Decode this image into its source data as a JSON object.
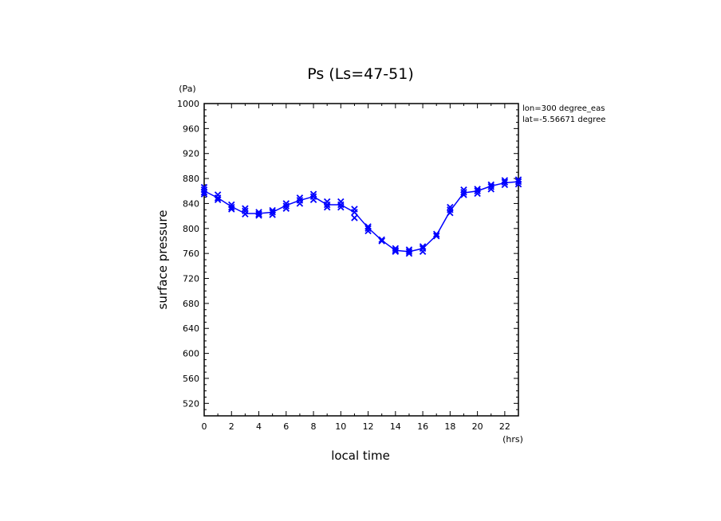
{
  "chart_data": {
    "type": "line",
    "title": "Ps (Ls=47-51)",
    "xlabel": "local time",
    "ylabel": "surface pressure",
    "x_unit": "(hrs)",
    "y_unit": "(Pa)",
    "xlim": [
      0,
      23
    ],
    "ylim": [
      500,
      1000
    ],
    "xticks": [
      0,
      2,
      4,
      6,
      8,
      10,
      12,
      14,
      16,
      18,
      20,
      22
    ],
    "yticks": [
      520,
      560,
      600,
      640,
      680,
      720,
      760,
      800,
      840,
      880,
      920,
      960,
      1000
    ],
    "annotations": [
      "lon=300 degree_eas",
      "lat=-5.56671 degree"
    ],
    "color": "#0000ff",
    "series": [
      {
        "x": [
          0,
          1,
          2,
          3,
          4,
          5,
          6,
          7,
          8,
          9,
          10,
          11,
          12,
          13,
          14,
          15,
          16,
          17,
          18,
          19,
          20,
          21,
          22,
          23
        ],
        "values": [
          860,
          849,
          835,
          824,
          824,
          826,
          837,
          845,
          851,
          838,
          838,
          826,
          801,
          781,
          765,
          763,
          768,
          789,
          828,
          857,
          860,
          868,
          873,
          875
        ]
      }
    ],
    "markers": {
      "style": "x",
      "points": [
        [
          0,
          866
        ],
        [
          0,
          862
        ],
        [
          0,
          858
        ],
        [
          0,
          855
        ],
        [
          1,
          854
        ],
        [
          1,
          849
        ],
        [
          1,
          846
        ],
        [
          2,
          838
        ],
        [
          2,
          834
        ],
        [
          2,
          831
        ],
        [
          3,
          832
        ],
        [
          3,
          828
        ],
        [
          3,
          823
        ],
        [
          4,
          826
        ],
        [
          4,
          823
        ],
        [
          4,
          821
        ],
        [
          5,
          829
        ],
        [
          5,
          826
        ],
        [
          5,
          822
        ],
        [
          6,
          840
        ],
        [
          6,
          836
        ],
        [
          6,
          832
        ],
        [
          7,
          849
        ],
        [
          7,
          845
        ],
        [
          7,
          840
        ],
        [
          8,
          855
        ],
        [
          8,
          851
        ],
        [
          8,
          846
        ],
        [
          9,
          843
        ],
        [
          9,
          838
        ],
        [
          9,
          834
        ],
        [
          10,
          843
        ],
        [
          10,
          838
        ],
        [
          10,
          834
        ],
        [
          11,
          831
        ],
        [
          11,
          826
        ],
        [
          11,
          817
        ],
        [
          12,
          803
        ],
        [
          12,
          800
        ],
        [
          12,
          796
        ],
        [
          13,
          782
        ],
        [
          13,
          780
        ],
        [
          14,
          768
        ],
        [
          14,
          765
        ],
        [
          14,
          763
        ],
        [
          15,
          766
        ],
        [
          15,
          763
        ],
        [
          15,
          760
        ],
        [
          16,
          771
        ],
        [
          16,
          768
        ],
        [
          16,
          763
        ],
        [
          17,
          791
        ],
        [
          17,
          788
        ],
        [
          18,
          834
        ],
        [
          18,
          830
        ],
        [
          18,
          825
        ],
        [
          19,
          862
        ],
        [
          19,
          858
        ],
        [
          19,
          854
        ],
        [
          20,
          863
        ],
        [
          20,
          860
        ],
        [
          20,
          856
        ],
        [
          21,
          870
        ],
        [
          21,
          867
        ],
        [
          21,
          863
        ],
        [
          22,
          877
        ],
        [
          22,
          874
        ],
        [
          22,
          870
        ],
        [
          23,
          878
        ],
        [
          23,
          875
        ],
        [
          23,
          871
        ]
      ]
    }
  }
}
